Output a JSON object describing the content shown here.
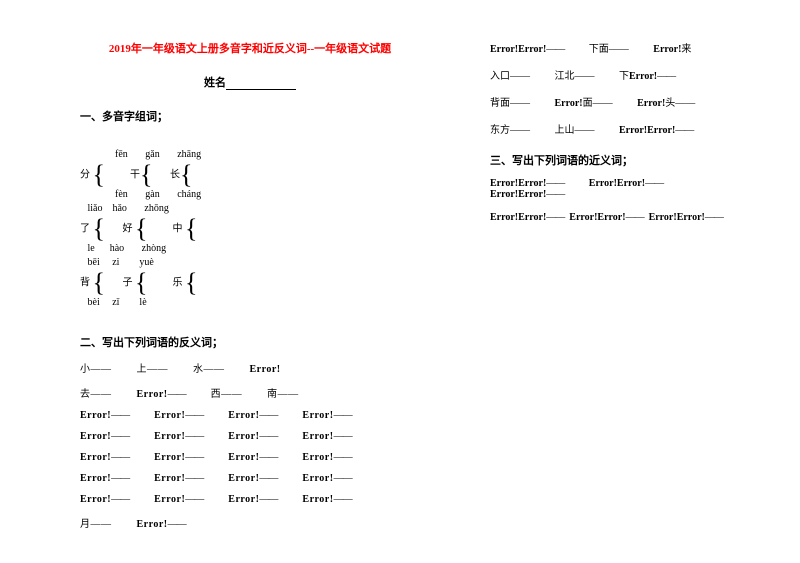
{
  "title": "2019年一年级语文上册多音字和近反义词--一年级语文试题",
  "name_label": "姓名",
  "section1": "一、多音字组词；",
  "section2": "二、写出下列词语的反义词；",
  "section3": "三、写出下列词语的近义词；",
  "err": "Error!",
  "pinyin": {
    "row1": "              fēn       gǎn       zhāng",
    "row2": "              fèn       gàn       cháng",
    "row3": "   liǎo    hǎo       zhōng",
    "row4": "   le      hào       zhòng",
    "row5": "   bēi     zi        yuè",
    "row6": "   bèi     zǐ        lè"
  },
  "chars": {
    "fen": "分",
    "gan": "干",
    "chang": "长",
    "liao": "了",
    "hao": "好",
    "zhong": "中",
    "bei": "背",
    "zi": "子",
    "le": "乐"
  },
  "anti": {
    "r1a": "小——",
    "r1b": "上——",
    "r1c": "水——",
    "r2a": "去——",
    "r2b": "西——",
    "r2c": "南——",
    "r7": "月——"
  },
  "right": {
    "r1a": "下面——",
    "r1b": "来",
    "r2a": "入口——",
    "r2b": "江北——",
    "r2c": "下",
    "r3a": "背面——",
    "r3b": "面——",
    "r3c": "头——",
    "r4a": "东方——",
    "r4b": "上山——"
  }
}
